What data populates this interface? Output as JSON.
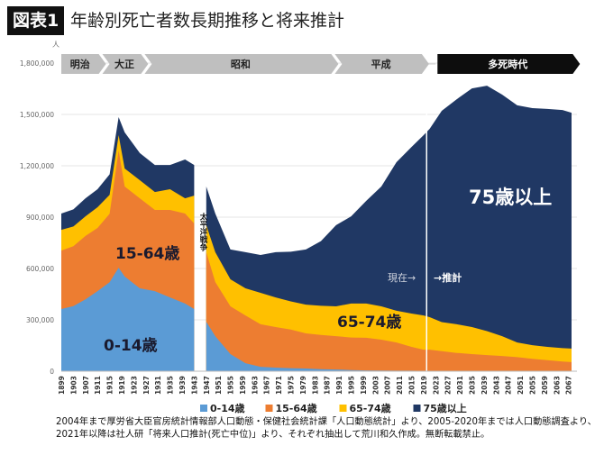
{
  "figure_label": "図表1",
  "title": "年齢別死亡者数長期推移と将来推計",
  "footnote": [
    "2004年まで厚労省大臣官房統計情報部人口動態・保健社会統計課「人口動態統計」より、2005-2020年までは人口動態調査より、",
    "2021年以降は社人研「将来人口推計(死亡中位)」より、それぞれ抽出して荒川和久作成。無断転載禁止。"
  ],
  "eras": [
    {
      "label": "明治",
      "from": 1899,
      "to": 1911,
      "style": "gray"
    },
    {
      "label": "大正",
      "from": 1912,
      "to": 1925,
      "style": "gray"
    },
    {
      "label": "昭和",
      "from": 1926,
      "to": 1988,
      "style": "gray"
    },
    {
      "label": "平成",
      "from": 1989,
      "to": 2018,
      "style": "gray"
    },
    {
      "label": "多死時代",
      "from": 2023,
      "to": 2068,
      "style": "black"
    }
  ],
  "annotations": {
    "war": "太平洋戦争",
    "now": "現在→",
    "projection": "→推計",
    "label_0_14": "0-14歳",
    "label_15_64": "15-64歳",
    "label_65_74": "65-74歳",
    "label_75": "75歳以上"
  },
  "chart_data": {
    "type": "area",
    "stacked": true,
    "yunit": "人",
    "ylim": [
      0,
      1800000
    ],
    "yticks": [
      "0",
      "300,000",
      "600,000",
      "900,000",
      "1,200,000",
      "1,500,000",
      "1,800,000"
    ],
    "ytick_values": [
      0,
      300000,
      600000,
      900000,
      1200000,
      1500000,
      1800000
    ],
    "xticks": [
      "1899",
      "1903",
      "1907",
      "1911",
      "1915",
      "1919",
      "1923",
      "1927",
      "1931",
      "1935",
      "1939",
      "1943",
      "1947",
      "1951",
      "1955",
      "1959",
      "1963",
      "1967",
      "1971",
      "1975",
      "1979",
      "1983",
      "1987",
      "1991",
      "1995",
      "1999",
      "2003",
      "2007",
      "2011",
      "2015",
      "2019",
      "2023",
      "2027",
      "2031",
      "2035",
      "2039",
      "2043",
      "2047",
      "2051",
      "2055",
      "2059",
      "2063",
      "2067"
    ],
    "gap_years": [
      1944,
      1946
    ],
    "projection_start": 2020,
    "legend_position": "bottom",
    "grid": true,
    "x": [
      1899,
      1903,
      1907,
      1911,
      1915,
      1918,
      1920,
      1925,
      1930,
      1935,
      1940,
      1943,
      1947,
      1950,
      1955,
      1960,
      1965,
      1970,
      1975,
      1980,
      1985,
      1990,
      1995,
      2000,
      2005,
      2010,
      2015,
      2019,
      2021,
      2025,
      2030,
      2035,
      2040,
      2045,
      2050,
      2055,
      2060,
      2065,
      2068
    ],
    "series": [
      {
        "name": "0-14歳",
        "color": "#5b9bd5",
        "values": [
          363000,
          380000,
          420000,
          468000,
          520000,
          605000,
          553000,
          484000,
          468000,
          431000,
          395000,
          363000,
          289000,
          205000,
          100000,
          47000,
          26000,
          21000,
          18000,
          16000,
          12000,
          10000,
          7000,
          5000,
          4000,
          3000,
          3000,
          2000,
          2000,
          2000,
          2000,
          2000,
          2000,
          2000,
          2000,
          2000,
          2000,
          2000,
          2000
        ]
      },
      {
        "name": "15-64歳",
        "color": "#ed7d31",
        "values": [
          342000,
          350000,
          370000,
          369000,
          400000,
          684000,
          526000,
          526000,
          474000,
          511000,
          526000,
          500000,
          406000,
          316000,
          279000,
          279000,
          248000,
          237000,
          225000,
          205000,
          200000,
          195000,
          190000,
          190000,
          180000,
          165000,
          139000,
          124000,
          124000,
          115000,
          105000,
          98000,
          92000,
          87000,
          80000,
          70000,
          62000,
          55000,
          51000
        ]
      },
      {
        "name": "65-74歳",
        "color": "#ffc000",
        "values": [
          121000,
          115000,
          115000,
          121000,
          110000,
          90000,
          105000,
          106000,
          105000,
          121000,
          89000,
          163000,
          158000,
          174000,
          158000,
          158000,
          184000,
          173000,
          165000,
          168000,
          170000,
          174000,
          198000,
          200000,
          195000,
          185000,
          195000,
          200000,
          190000,
          170000,
          167000,
          158000,
          140000,
          116000,
          86000,
          80000,
          78000,
          78000,
          79000
        ]
      },
      {
        "name": "75歳以上",
        "color": "#203864",
        "values": [
          95000,
          100000,
          105000,
          105000,
          120000,
          105000,
          211000,
          158000,
          158000,
          142000,
          227000,
          179000,
          226000,
          226000,
          174000,
          211000,
          221000,
          264000,
          290000,
          322000,
          378000,
          474000,
          510000,
          600000,
          700000,
          868000,
          973000,
          1053000,
          1100000,
          1234000,
          1315000,
          1394000,
          1434000,
          1411000,
          1385000,
          1385000,
          1390000,
          1391000,
          1378000
        ]
      }
    ]
  }
}
